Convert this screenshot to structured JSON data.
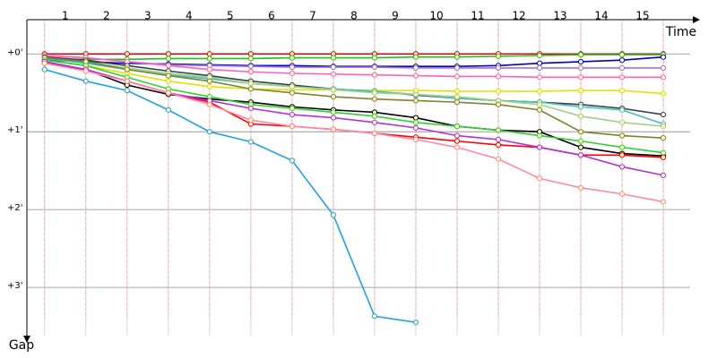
{
  "chart_data": {
    "type": "line",
    "x_label": "Time",
    "y_label": "Gap",
    "x": [
      0,
      1,
      2,
      3,
      4,
      5,
      6,
      7,
      8,
      9,
      10,
      11,
      12,
      13,
      14,
      15
    ],
    "xlim": [
      -0.43,
      15.65
    ],
    "xticks": [
      {
        "value": 0.5,
        "label": "1"
      },
      {
        "value": 1.5,
        "label": "2"
      },
      {
        "value": 2.5,
        "label": "3"
      },
      {
        "value": 3.5,
        "label": "4"
      },
      {
        "value": 4.5,
        "label": "5"
      },
      {
        "value": 5.5,
        "label": "6"
      },
      {
        "value": 6.5,
        "label": "7"
      },
      {
        "value": 7.5,
        "label": "8"
      },
      {
        "value": 8.5,
        "label": "9"
      },
      {
        "value": 9.5,
        "label": "10"
      },
      {
        "value": 10.5,
        "label": "11"
      },
      {
        "value": 11.5,
        "label": "12"
      },
      {
        "value": 12.5,
        "label": "13"
      },
      {
        "value": 13.5,
        "label": "14"
      },
      {
        "value": 14.5,
        "label": "15"
      }
    ],
    "ylim": [
      -0.44,
      3.62
    ],
    "yticks": [
      {
        "value": 0,
        "label": "+0'"
      },
      {
        "value": 1,
        "label": "+1'"
      },
      {
        "value": 2,
        "label": "+2'"
      },
      {
        "value": 3,
        "label": "+3'"
      }
    ],
    "grid": true,
    "series": [
      {
        "color": "#e00000",
        "values": [
          0,
          0,
          0,
          0,
          0,
          0,
          0,
          0,
          0,
          0,
          0,
          0,
          0,
          0,
          0,
          0
        ]
      },
      {
        "color": "#20c020",
        "values": [
          0.07,
          0.07,
          0.07,
          0.06,
          0.06,
          0.06,
          0.05,
          0.05,
          0.05,
          0.04,
          0.04,
          0.03,
          0.02,
          0.01,
          0.01,
          0.01
        ]
      },
      {
        "color": "#0000c0",
        "values": [
          0.08,
          0.1,
          0.12,
          0.13,
          0.14,
          0.15,
          0.15,
          0.16,
          0.16,
          0.16,
          0.16,
          0.15,
          0.12,
          0.1,
          0.08,
          0.04
        ]
      },
      {
        "color": "#a070e0",
        "values": [
          0.02,
          0.05,
          0.1,
          0.14,
          0.15,
          0.16,
          0.17,
          0.17,
          0.17,
          0.18,
          0.18,
          0.18,
          0.18,
          0.18,
          0.18,
          0.18
        ]
      },
      {
        "color": "#ff60c0",
        "values": [
          0.02,
          0.05,
          0.1,
          0.15,
          0.2,
          0.23,
          0.25,
          0.26,
          0.27,
          0.28,
          0.29,
          0.29,
          0.3,
          0.3,
          0.3,
          0.3
        ]
      },
      {
        "color": "#e0e000",
        "values": [
          0.08,
          0.15,
          0.25,
          0.35,
          0.42,
          0.45,
          0.46,
          0.46,
          0.47,
          0.47,
          0.48,
          0.48,
          0.48,
          0.47,
          0.47,
          0.51
        ]
      },
      {
        "color": "#304050",
        "values": [
          0.04,
          0.08,
          0.15,
          0.22,
          0.28,
          0.35,
          0.4,
          0.45,
          0.48,
          0.53,
          0.57,
          0.6,
          0.62,
          0.65,
          0.7,
          0.78
        ]
      },
      {
        "color": "#40c0c0",
        "values": [
          0.06,
          0.12,
          0.2,
          0.27,
          0.32,
          0.38,
          0.42,
          0.45,
          0.48,
          0.52,
          0.57,
          0.6,
          0.62,
          0.68,
          0.72,
          0.9
        ]
      },
      {
        "color": "#a0d080",
        "values": [
          0.05,
          0.1,
          0.18,
          0.25,
          0.3,
          0.38,
          0.42,
          0.46,
          0.5,
          0.52,
          0.55,
          0.6,
          0.65,
          0.8,
          0.88,
          0.93
        ]
      },
      {
        "color": "#808030",
        "values": [
          0.05,
          0.1,
          0.2,
          0.28,
          0.35,
          0.45,
          0.5,
          0.55,
          0.58,
          0.6,
          0.62,
          0.65,
          0.72,
          1.0,
          1.05,
          1.08
        ]
      },
      {
        "color": "#000000",
        "values": [
          0.12,
          0.2,
          0.4,
          0.52,
          0.58,
          0.62,
          0.68,
          0.72,
          0.75,
          0.82,
          0.93,
          0.98,
          1.0,
          1.2,
          1.28,
          1.31
        ]
      },
      {
        "color": "#30d030",
        "values": [
          0.08,
          0.15,
          0.3,
          0.45,
          0.55,
          0.65,
          0.7,
          0.75,
          0.8,
          0.88,
          0.93,
          0.98,
          1.05,
          1.12,
          1.2,
          1.27
        ]
      },
      {
        "color": "#ff0000",
        "values": [
          0.1,
          0.2,
          0.35,
          0.5,
          0.62,
          0.9,
          0.93,
          0.97,
          1.02,
          1.07,
          1.12,
          1.17,
          1.2,
          1.3,
          1.3,
          1.33
        ]
      },
      {
        "color": "#b030e0",
        "values": [
          0.1,
          0.2,
          0.35,
          0.5,
          0.6,
          0.7,
          0.78,
          0.82,
          0.88,
          0.95,
          1.05,
          1.1,
          1.2,
          1.3,
          1.45,
          1.56
        ]
      },
      {
        "color": "#ff88a8",
        "values": [
          0.12,
          0.22,
          0.35,
          0.5,
          0.65,
          0.85,
          0.93,
          0.97,
          1.02,
          1.1,
          1.2,
          1.35,
          1.6,
          1.72,
          1.8,
          1.9
        ]
      },
      {
        "color": "#1ea0e8",
        "values": [
          0.2,
          0.35,
          0.47,
          0.72,
          1.0,
          1.13,
          1.37,
          2.07,
          3.37,
          3.45,
          null,
          null,
          null,
          null,
          null,
          null
        ]
      }
    ]
  }
}
